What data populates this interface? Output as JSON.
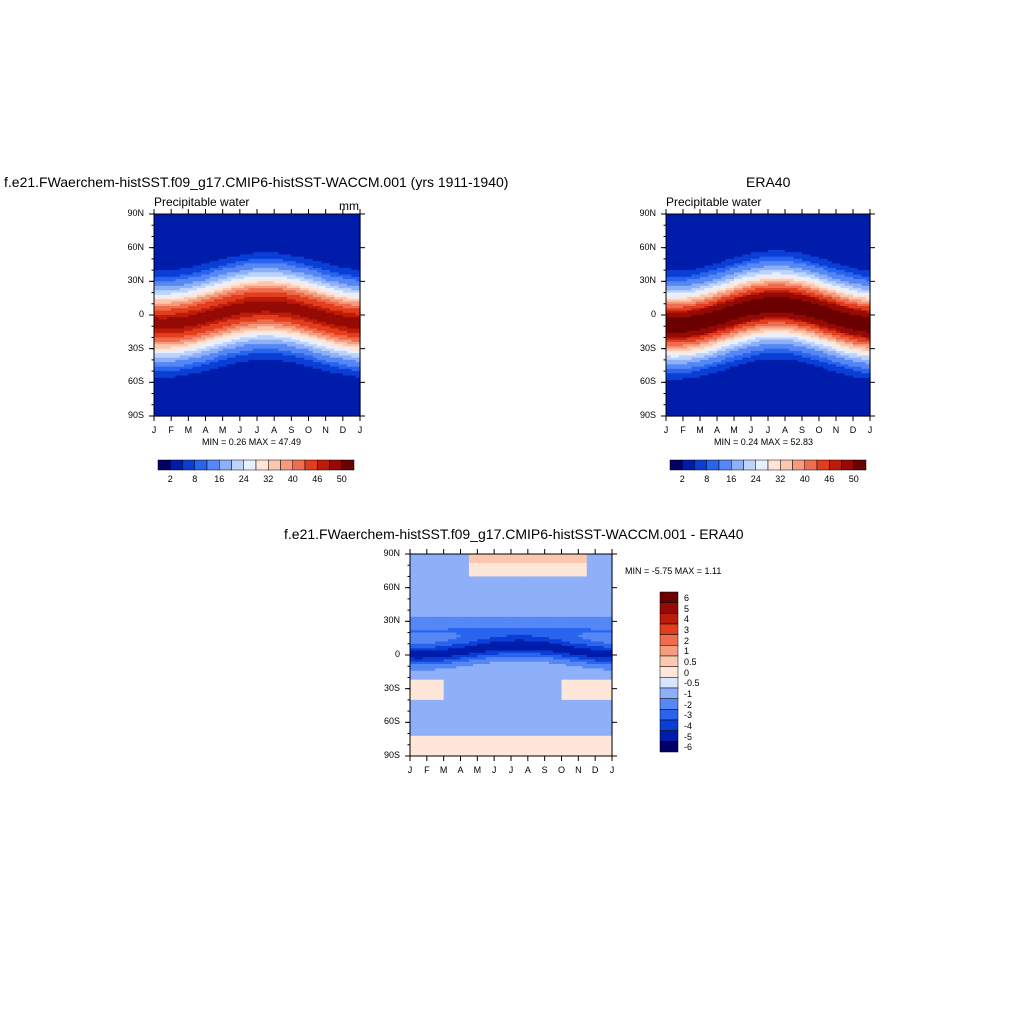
{
  "colors": {
    "sequential": [
      "#000066",
      "#001caa",
      "#0a3fd6",
      "#2a64ee",
      "#5587f5",
      "#8eb0f8",
      "#bcd4fb",
      "#e8f0ff",
      "#fee6d8",
      "#fbc7ae",
      "#f69c7e",
      "#ef6d4f",
      "#e23e1e",
      "#be1c0a",
      "#960a05",
      "#6b0000"
    ],
    "diverging": [
      "#000066",
      "#001caa",
      "#0a3fd6",
      "#2a64ee",
      "#5587f5",
      "#8eb0f8",
      "#d6e6fe",
      "#fee6d8",
      "#fbc7ae",
      "#f69c7e",
      "#ef6d4f",
      "#e23e1e",
      "#be1c0a",
      "#960a05",
      "#6b0000"
    ]
  },
  "chart_data": [
    {
      "type": "heatmap",
      "title": "f.e21.FWaerchem-histSST.f09_g17.CMIP6-histSST-WACCM.001 (yrs 1911-1940)",
      "left_label": "Precipitable water",
      "units": "mm",
      "stats": "MIN =   0.26 MAX =  47.49",
      "x_tick_labels": [
        "J",
        "F",
        "M",
        "A",
        "M",
        "J",
        "J",
        "A",
        "S",
        "O",
        "N",
        "D",
        "J"
      ],
      "y_tick_labels": [
        "90N",
        "60N",
        "30N",
        "0",
        "30S",
        "60S",
        "90S"
      ],
      "y_range": [
        -90,
        90
      ],
      "z_range": [
        0,
        52
      ],
      "equator_max": 47,
      "itcz_lat_max": 8,
      "colorbar_labels": [
        "2",
        "8",
        "16",
        "24",
        "32",
        "40",
        "46",
        "50"
      ]
    },
    {
      "type": "heatmap",
      "title": "ERA40",
      "left_label": "Precipitable water",
      "units": "",
      "stats": "MIN =   0.24 MAX =  52.83",
      "x_tick_labels": [
        "J",
        "F",
        "M",
        "A",
        "M",
        "J",
        "J",
        "A",
        "S",
        "O",
        "N",
        "D",
        "J"
      ],
      "y_tick_labels": [
        "90N",
        "60N",
        "30N",
        "0",
        "30S",
        "60S",
        "90S"
      ],
      "y_range": [
        -90,
        90
      ],
      "z_range": [
        0,
        52
      ],
      "equator_max": 52,
      "itcz_lat_max": 9,
      "colorbar_labels": [
        "2",
        "8",
        "16",
        "24",
        "32",
        "40",
        "46",
        "50"
      ]
    },
    {
      "type": "heatmap",
      "title": "f.e21.FWaerchem-histSST.f09_g17.CMIP6-histSST-WACCM.001 - ERA40",
      "stats": "MIN =  -5.75 MAX =   1.11",
      "x_tick_labels": [
        "J",
        "F",
        "M",
        "A",
        "M",
        "J",
        "J",
        "A",
        "S",
        "O",
        "N",
        "D",
        "J"
      ],
      "y_tick_labels": [
        "90N",
        "60N",
        "30N",
        "0",
        "30S",
        "60S",
        "90S"
      ],
      "y_range": [
        -90,
        90
      ],
      "z_range": [
        -5.75,
        1.11
      ],
      "colorbar_labels": [
        "6",
        "5",
        "4",
        "3",
        "2",
        "1",
        "0.5",
        "0",
        "-0.5",
        "-1",
        "-2",
        "-3",
        "-4",
        "-5",
        "-6"
      ]
    }
  ]
}
